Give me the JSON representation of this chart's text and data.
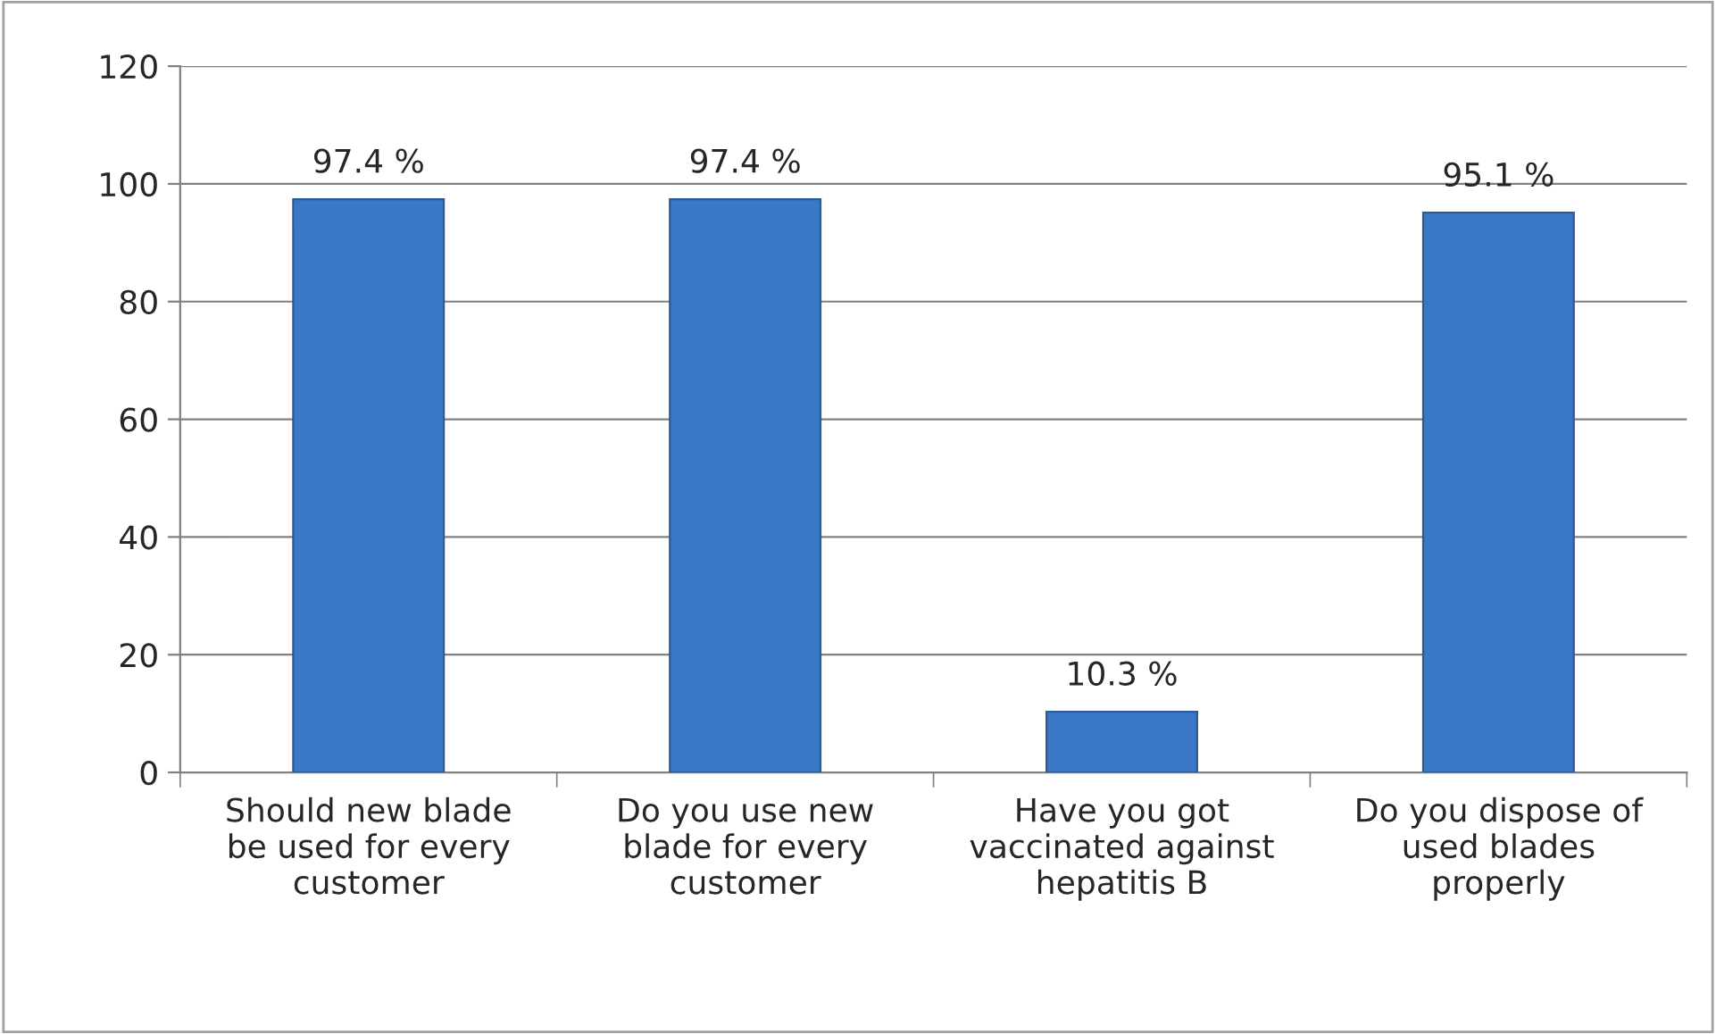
{
  "chart_data": {
    "type": "bar",
    "categories": [
      "Should new blade\nbe used for every\ncustomer",
      "Do you use new\nblade for every\ncustomer",
      "Have you got\nvaccinated against\nhepatitis B",
      "Do you dispose of\nused blades\nproperly"
    ],
    "values": [
      97.4,
      97.4,
      10.3,
      95.1
    ],
    "value_labels": [
      "97.4 %",
      "97.4 %",
      "10.3 %",
      "95.1 %"
    ],
    "color": "#3a78c6",
    "ylim": [
      0,
      120
    ],
    "yticks": [
      0,
      20,
      40,
      60,
      80,
      100,
      120
    ],
    "grid": "y"
  }
}
